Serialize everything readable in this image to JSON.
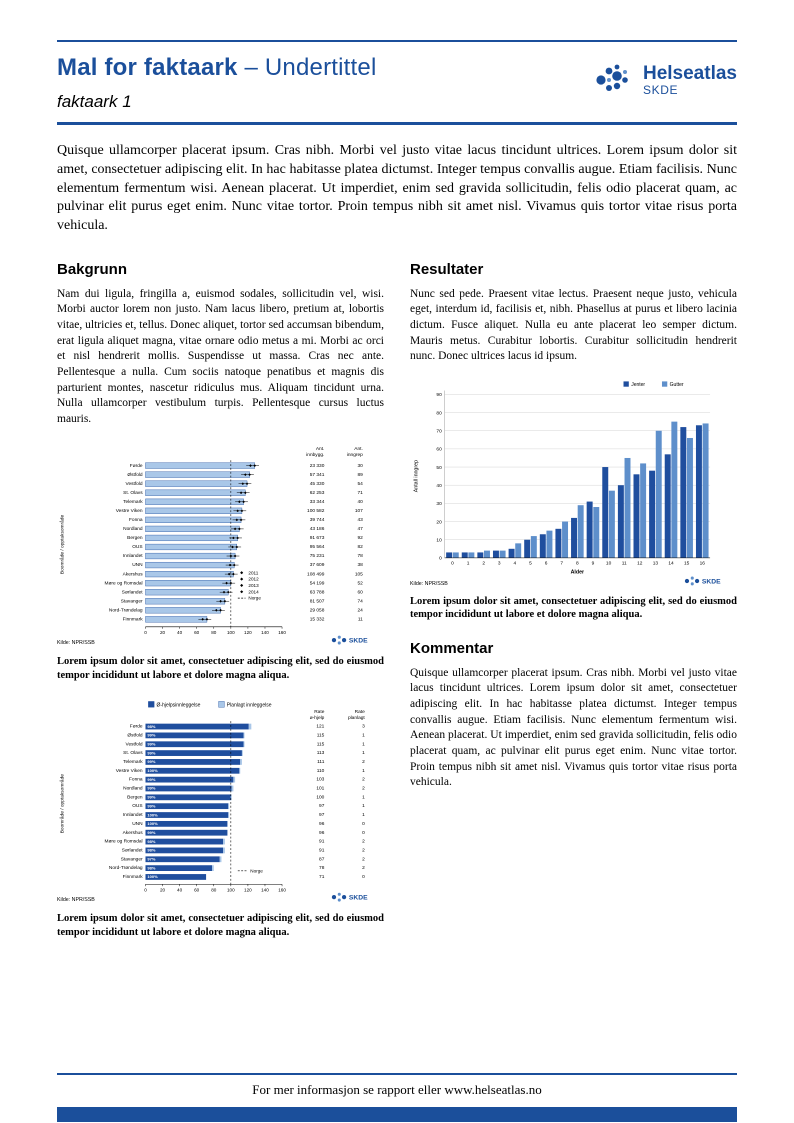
{
  "header": {
    "title": "Mal for faktaark",
    "subtitle": "– Undertittel",
    "doc_label": "faktaark 1",
    "logo_name": "Helseatlas",
    "logo_org": "SKDE"
  },
  "intro": "Quisque ullamcorper placerat ipsum. Cras nibh. Morbi vel justo vitae lacus tincidunt ultrices. Lorem ipsum dolor sit amet, consectetuer adipiscing elit. In hac habitasse platea dictumst. Integer tempus convallis augue. Etiam facilisis. Nunc elementum fermentum wisi. Aenean placerat. Ut imperdiet, enim sed gravida sollicitudin, felis odio placerat quam, ac pulvinar elit purus eget enim. Nunc vitae tortor. Proin tempus nibh sit amet nisl. Vivamus quis tortor vitae risus porta vehicula.",
  "sections": {
    "bakgrunn": {
      "heading": "Bakgrunn",
      "body": "Nam dui ligula, fringilla a, euismod sodales, sollicitudin vel, wisi. Morbi auctor lorem non justo. Nam lacus libero, pretium at, lobortis vitae, ultricies et, tellus. Donec aliquet, tortor sed accumsan bibendum, erat ligula aliquet magna, vitae ornare odio metus a mi. Morbi ac orci et nisl hendrerit mollis. Suspendisse ut massa. Cras nec ante. Pellentesque a nulla. Cum sociis natoque penatibus et magnis dis parturient montes, nascetur ridiculus mus. Aliquam tincidunt urna. Nulla ullamcorper vestibulum turpis. Pellentesque cursus luctus mauris."
    },
    "resultater": {
      "heading": "Resultater",
      "body": "Nunc sed pede. Praesent vitae lectus. Praesent neque justo, vehicula eget, interdum id, facilisis et, nibh. Phasellus at purus et libero lacinia dictum. Fusce aliquet. Nulla eu ante placerat leo semper dictum. Mauris metus. Curabitur lobortis. Curabitur sollicitudin hendrerit nunc. Donec ultrices lacus id ipsum."
    },
    "kommentar": {
      "heading": "Kommentar",
      "body": "Quisque ullamcorper placerat ipsum. Cras nibh. Morbi vel justo vitae lacus tincidunt ultrices. Lorem ipsum dolor sit amet, consectetuer adipiscing elit. In hac habitasse platea dictumst. Integer tempus convallis augue. Etiam facilisis. Nunc elementum fermentum wisi. Aenean placerat. Ut imperdiet, enim sed gravida sollicitudin, felis odio placerat quam, ac pulvinar elit purus eget enim. Nunc vitae tortor. Proin tempus nibh sit amet nisl. Vivamus quis tortor vitae risus porta vehicula."
    }
  },
  "captions": {
    "chart1": "Lorem ipsum dolor sit amet, consectetuer adipiscing elit, sed do eiusmod tempor incididunt ut labore et dolore magna aliqua.",
    "chart2": "Lorem ipsum dolor sit amet, consectetuer adipiscing elit, sed do eiusmod tempor incididunt ut labore et dolore magna aliqua.",
    "chart3": "Lorem ipsum dolor sit amet, consectetuer adipiscing elit, sed do eiusmod tempor incididunt ut labore et dolore magna aliqua."
  },
  "footer": {
    "text": "For mer informasjon se rapport eller www.helseatlas.no"
  },
  "brand": {
    "skde": "SKDE"
  },
  "colors": {
    "brand": "#1B4F9B",
    "bar_dark": "#1F4E9E",
    "bar_light": "#A9C7E8",
    "bar_mid": "#5E8FCB",
    "grid": "#C8C8C8"
  },
  "chart_data": [
    {
      "id": "chart1",
      "type": "bar",
      "orientation": "horizontal",
      "ylabel": "Boområde / opptaksområde",
      "xlim": [
        0,
        160
      ],
      "xticks": [
        0,
        20,
        40,
        60,
        80,
        100,
        120,
        140,
        160
      ],
      "reference_line": 100,
      "columns": [
        "Ant. innbygg.",
        "Ant. inngrep"
      ],
      "legend": [
        "2011",
        "2012",
        "2013",
        "2014",
        "Norge"
      ],
      "source": "Kilde: NPR/SSB",
      "rows": [
        {
          "label": "Førde",
          "rate": 128,
          "innbygg": "23 330",
          "inngrep": "30"
        },
        {
          "label": "Østfold",
          "rate": 122,
          "innbygg": "57 341",
          "inngrep": "89"
        },
        {
          "label": "Vestfold",
          "rate": 119,
          "innbygg": "45 330",
          "inngrep": "54"
        },
        {
          "label": "St. Olavs",
          "rate": 117,
          "innbygg": "62 253",
          "inngrep": "71"
        },
        {
          "label": "Telemark",
          "rate": 115,
          "innbygg": "33 344",
          "inngrep": "40"
        },
        {
          "label": "Vestre Viken",
          "rate": 113,
          "innbygg": "100 582",
          "inngrep": "107"
        },
        {
          "label": "Fonna",
          "rate": 112,
          "innbygg": "39 744",
          "inngrep": "43"
        },
        {
          "label": "Nordland",
          "rate": 110,
          "innbygg": "43 186",
          "inngrep": "47"
        },
        {
          "label": "Bergen",
          "rate": 108,
          "innbygg": "91 673",
          "inngrep": "92"
        },
        {
          "label": "OUS",
          "rate": 107,
          "innbygg": "95 564",
          "inngrep": "82"
        },
        {
          "label": "Innlandet",
          "rate": 105,
          "innbygg": "75 231",
          "inngrep": "78"
        },
        {
          "label": "UNN",
          "rate": 104,
          "innbygg": "37 609",
          "inngrep": "38"
        },
        {
          "label": "Akershus",
          "rate": 103,
          "innbygg": "108 499",
          "inngrep": "105"
        },
        {
          "label": "Møre og Romsdal",
          "rate": 100,
          "innbygg": "54 199",
          "inngrep": "52"
        },
        {
          "label": "Sørlandet",
          "rate": 97,
          "innbygg": "63 788",
          "inngrep": "60"
        },
        {
          "label": "Stavanger",
          "rate": 93,
          "innbygg": "81 507",
          "inngrep": "74"
        },
        {
          "label": "Nord-Trøndelag",
          "rate": 88,
          "innbygg": "29 058",
          "inngrep": "24"
        },
        {
          "label": "Finnmark",
          "rate": 72,
          "innbygg": "15 332",
          "inngrep": "11"
        }
      ]
    },
    {
      "id": "chart2",
      "type": "bar",
      "orientation": "horizontal",
      "ylabel": "Boområde / opptaksområde",
      "xlim": [
        0,
        160
      ],
      "xticks": [
        0,
        20,
        40,
        60,
        80,
        100,
        120,
        140,
        160
      ],
      "reference_line": 100,
      "legend": [
        "Ø-hjelpsinnleggelse",
        "Planlagt innleggelse"
      ],
      "norge_label": "Norge",
      "columns": [
        "Rate ø-hjelp",
        "Rate planlagt"
      ],
      "source": "Kilde: NPR/SSB",
      "rows": [
        {
          "label": "Førde",
          "pct": "98%",
          "rate": 121,
          "planlagt": 3
        },
        {
          "label": "Østfold",
          "pct": "99%",
          "rate": 115,
          "planlagt": 1
        },
        {
          "label": "Vestfold",
          "pct": "99%",
          "rate": 115,
          "planlagt": 1
        },
        {
          "label": "St. Olavs",
          "pct": "99%",
          "rate": 113,
          "planlagt": 1
        },
        {
          "label": "Telemark",
          "pct": "99%",
          "rate": 111,
          "planlagt": 2
        },
        {
          "label": "Vestre Viken",
          "pct": "100%",
          "rate": 110,
          "planlagt": 1
        },
        {
          "label": "Fonna",
          "pct": "99%",
          "rate": 103,
          "planlagt": 2
        },
        {
          "label": "Nordland",
          "pct": "99%",
          "rate": 101,
          "planlagt": 2
        },
        {
          "label": "Bergen",
          "pct": "99%",
          "rate": 100,
          "planlagt": 1
        },
        {
          "label": "OUS",
          "pct": "99%",
          "rate": 97,
          "planlagt": 1
        },
        {
          "label": "Innlandet",
          "pct": "100%",
          "rate": 97,
          "planlagt": 1
        },
        {
          "label": "UNN",
          "pct": "100%",
          "rate": 96,
          "planlagt": 0
        },
        {
          "label": "Akershus",
          "pct": "99%",
          "rate": 96,
          "planlagt": 0
        },
        {
          "label": "Møre og Romsdal",
          "pct": "98%",
          "rate": 91,
          "planlagt": 2
        },
        {
          "label": "Sørlandet",
          "pct": "98%",
          "rate": 91,
          "planlagt": 2
        },
        {
          "label": "Stavanger",
          "pct": "97%",
          "rate": 87,
          "planlagt": 2
        },
        {
          "label": "Nord-Trøndelag",
          "pct": "98%",
          "rate": 78,
          "planlagt": 2
        },
        {
          "label": "Finnmark",
          "pct": "100%",
          "rate": 71,
          "planlagt": 0
        }
      ]
    },
    {
      "id": "chart3",
      "type": "bar",
      "orientation": "vertical",
      "title": "",
      "xlabel": "Alder",
      "ylabel": "Antall inngrep",
      "ylim": [
        0,
        90
      ],
      "yticks": [
        0,
        10,
        20,
        30,
        40,
        50,
        60,
        70,
        80,
        90
      ],
      "categories": [
        "0",
        "1",
        "2",
        "3",
        "4",
        "5",
        "6",
        "7",
        "8",
        "9",
        "10",
        "11",
        "12",
        "13",
        "14",
        "15",
        "16"
      ],
      "series": [
        {
          "name": "Jenter",
          "values": [
            3,
            3,
            3,
            4,
            5,
            10,
            13,
            16,
            22,
            31,
            50,
            40,
            46,
            48,
            57,
            72,
            73
          ]
        },
        {
          "name": "Gutter",
          "values": [
            3,
            3,
            4,
            4,
            8,
            12,
            15,
            20,
            29,
            28,
            37,
            55,
            52,
            70,
            75,
            66,
            74
          ]
        }
      ],
      "legend_position": "top-right",
      "grid": true,
      "source": "Kilde: NPR/SSB"
    }
  ]
}
